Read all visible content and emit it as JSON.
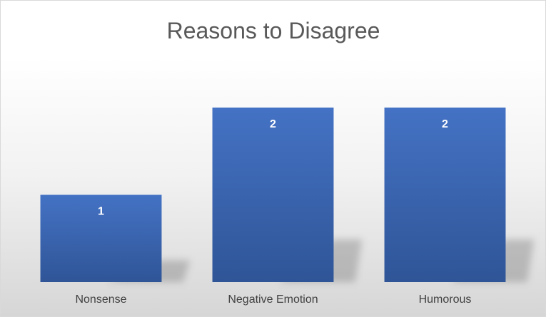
{
  "chart_data": {
    "type": "bar",
    "title": "Reasons to Disagree",
    "categories": [
      "Nonsense",
      "Negative Emotion",
      "Humorous"
    ],
    "values": [
      1,
      2,
      2
    ],
    "xlabel": "",
    "ylabel": "",
    "ylim": [
      0,
      2
    ],
    "grid": false,
    "legend": "none",
    "data_labels": [
      "1",
      "2",
      "2"
    ],
    "colors": {
      "bar_top": "#4472c4",
      "bar_bottom": "#2f5597",
      "label": "#ffffff",
      "title": "#595959",
      "ticks": "#404040"
    }
  }
}
